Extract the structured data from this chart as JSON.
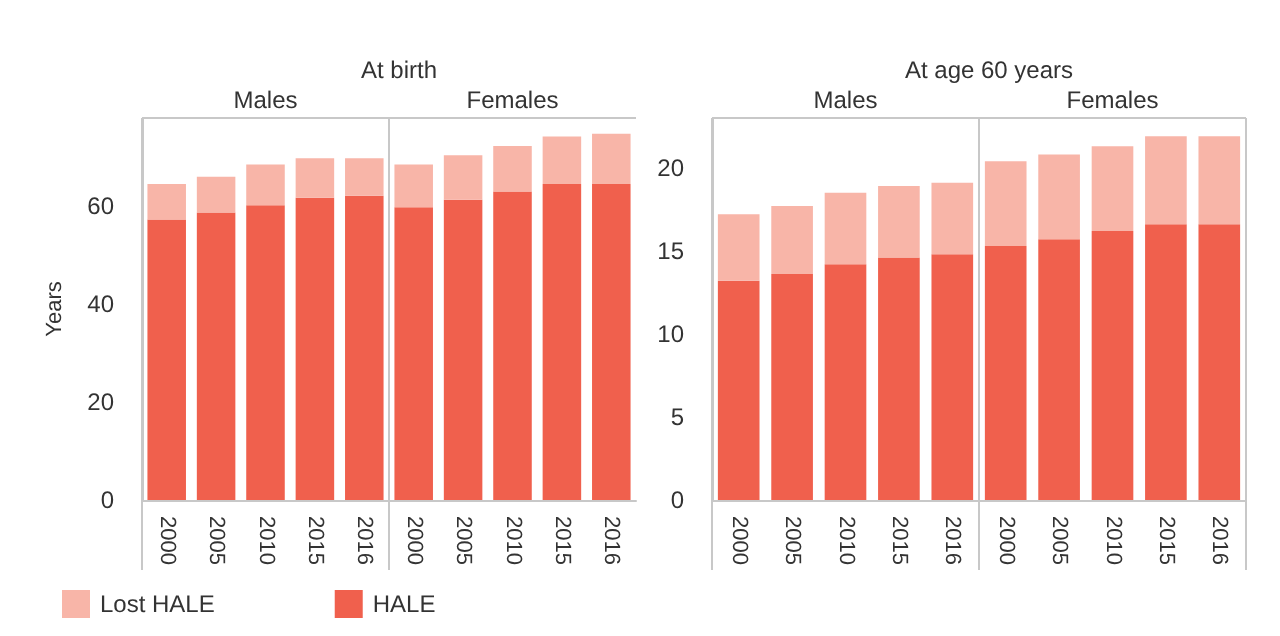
{
  "chart_data": [
    {
      "type": "bar",
      "title": "At birth",
      "ylabel": "Years",
      "stacked": true,
      "legend": "bottom left",
      "grid": false,
      "annotations": [
        "Males",
        "Females"
      ],
      "categories": [
        "2000",
        "2005",
        "2010",
        "2015",
        "2016",
        "2000",
        "2005",
        "2010",
        "2015",
        "2016"
      ],
      "ylim": [
        0,
        78
      ],
      "yticks": [
        0,
        20,
        40,
        60
      ],
      "series": [
        {
          "name": "HALE",
          "color": "#f0604d",
          "values": [
            57.3,
            58.7,
            60.2,
            61.7,
            62.1,
            59.8,
            61.3,
            63.0,
            64.5,
            64.5
          ]
        },
        {
          "name": "Lost HALE",
          "color": "#f8b5a8",
          "values": [
            7.2,
            7.3,
            8.3,
            8.1,
            7.7,
            8.7,
            9.1,
            9.3,
            9.7,
            10.3
          ]
        }
      ]
    },
    {
      "type": "bar",
      "title": "At age 60 years",
      "stacked": true,
      "grid": false,
      "annotations": [
        "Males",
        "Females"
      ],
      "categories": [
        "2000",
        "2005",
        "2010",
        "2015",
        "2016",
        "2000",
        "2005",
        "2010",
        "2015",
        "2016"
      ],
      "ylim": [
        0,
        23
      ],
      "yticks": [
        0,
        5,
        10,
        15,
        20
      ],
      "series": [
        {
          "color": "#f0604d",
          "values": [
            13.2,
            13.6,
            14.2,
            14.6,
            14.8,
            15.3,
            15.7,
            16.2,
            16.6,
            16.6
          ]
        },
        {
          "color": "#f8b5a8",
          "values": [
            4.0,
            4.1,
            4.3,
            4.3,
            4.3,
            5.1,
            5.1,
            5.1,
            5.3,
            5.3
          ]
        }
      ]
    }
  ]
}
